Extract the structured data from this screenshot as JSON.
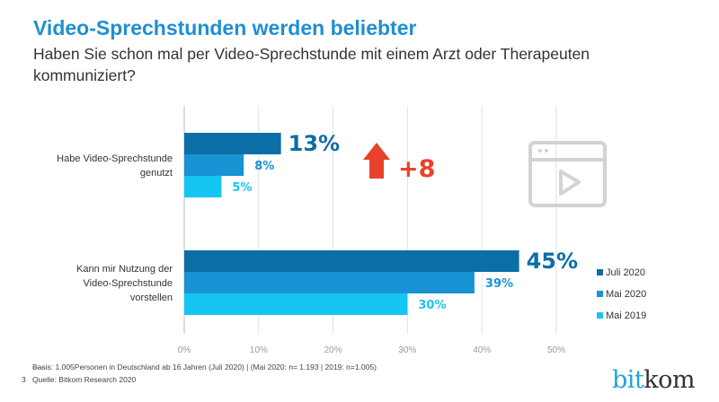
{
  "title": "Video-Sprechstunden werden beliebter",
  "subtitle": "Haben Sie schon mal per Video-Sprechstunde mit einem Arzt oder Therapeuten kommuniziert?",
  "chart_data": {
    "type": "bar",
    "orientation": "horizontal",
    "categories": [
      [
        "Habe Video-Sprechstunde",
        "genutzt"
      ],
      [
        "Kann mir Nutzung der",
        "Video-Sprechstunde",
        "vorstellen"
      ]
    ],
    "series": [
      {
        "name": "Juli 2020",
        "values": [
          13,
          45
        ],
        "color": "#0b6ea6"
      },
      {
        "name": "Mai 2020",
        "values": [
          8,
          39
        ],
        "color": "#1893d3"
      },
      {
        "name": "Mai 2019",
        "values": [
          5,
          30
        ],
        "color": "#16c6f2"
      }
    ],
    "data_labels": [
      [
        "13%",
        "8%",
        "5%"
      ],
      [
        "45%",
        "39%",
        "30%"
      ]
    ],
    "xlim": [
      0,
      50
    ],
    "x_ticks": [
      "0%",
      "10%",
      "20%",
      "30%",
      "40%",
      "50%"
    ],
    "grid": true,
    "legend_position": "right",
    "annotation": {
      "text": "+8",
      "icon": "arrow-up-icon",
      "color": "#e8412c"
    },
    "decor_icon": "video-window-icon"
  },
  "footer": {
    "basis": "Basis: 1.005Personen in Deutschland ab 16 Jahren (Juli 2020) | (Mai 2020: n= 1.193 | 2019: n=1.005)",
    "source": "Quelle: Bitkom Research 2020",
    "page": "3"
  },
  "logo": {
    "part1": "bit",
    "part2": "kom"
  }
}
